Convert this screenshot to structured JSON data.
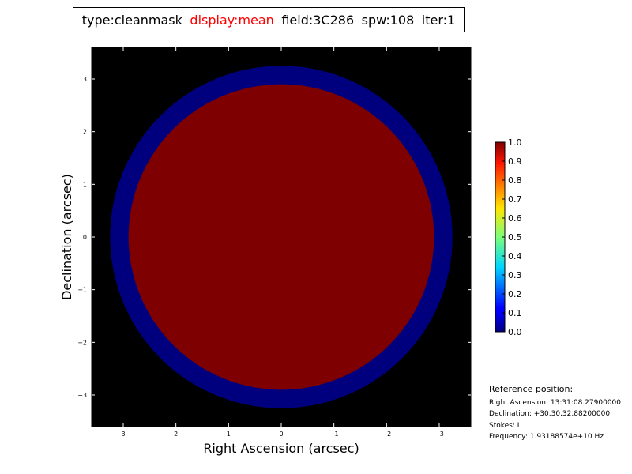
{
  "title": {
    "type": "type:cleanmask",
    "display": "display:mean",
    "field": "field:3C286",
    "spw": "spw:108",
    "iter": "iter:1",
    "display_color": "#ff0000"
  },
  "reference": {
    "heading": "Reference position:",
    "ra": "Right Ascension: 13:31:08.27900000",
    "dec": "Declination: +30.30.32.88200000",
    "stokes": "Stokes: I",
    "frequency": "Frequency: 1.93188574e+10 Hz"
  },
  "chart_data": {
    "type": "heatmap",
    "xlabel": "Right Ascension (arcsec)",
    "ylabel": "Declination (arcsec)",
    "xlim": [
      3.6,
      -3.6
    ],
    "ylim": [
      -3.6,
      3.6
    ],
    "xticks": [
      3,
      2,
      1,
      0,
      -1,
      -2,
      -3
    ],
    "yticks": [
      3,
      2,
      1,
      0,
      -1,
      -2,
      -3
    ],
    "xtick_labels": [
      "3",
      "2",
      "1",
      "0",
      "−1",
      "−2",
      "−3"
    ],
    "ytick_labels": [
      "3",
      "2",
      "1",
      "0",
      "−1",
      "−2",
      "−3"
    ],
    "background": "#000000",
    "regions": [
      {
        "shape": "disk",
        "radius_arcsec": 3.25,
        "value": 0.0,
        "color": "#00007f"
      },
      {
        "shape": "disk",
        "radius_arcsec": 2.9,
        "value": 1.0,
        "color": "#7f0000"
      }
    ],
    "colormap": "jet",
    "colorbar": {
      "range": [
        0.0,
        1.0
      ],
      "tick_labels": [
        "0.0",
        "0.1",
        "0.2",
        "0.3",
        "0.4",
        "0.5",
        "0.6",
        "0.7",
        "0.8",
        "0.9",
        "1.0"
      ]
    }
  }
}
